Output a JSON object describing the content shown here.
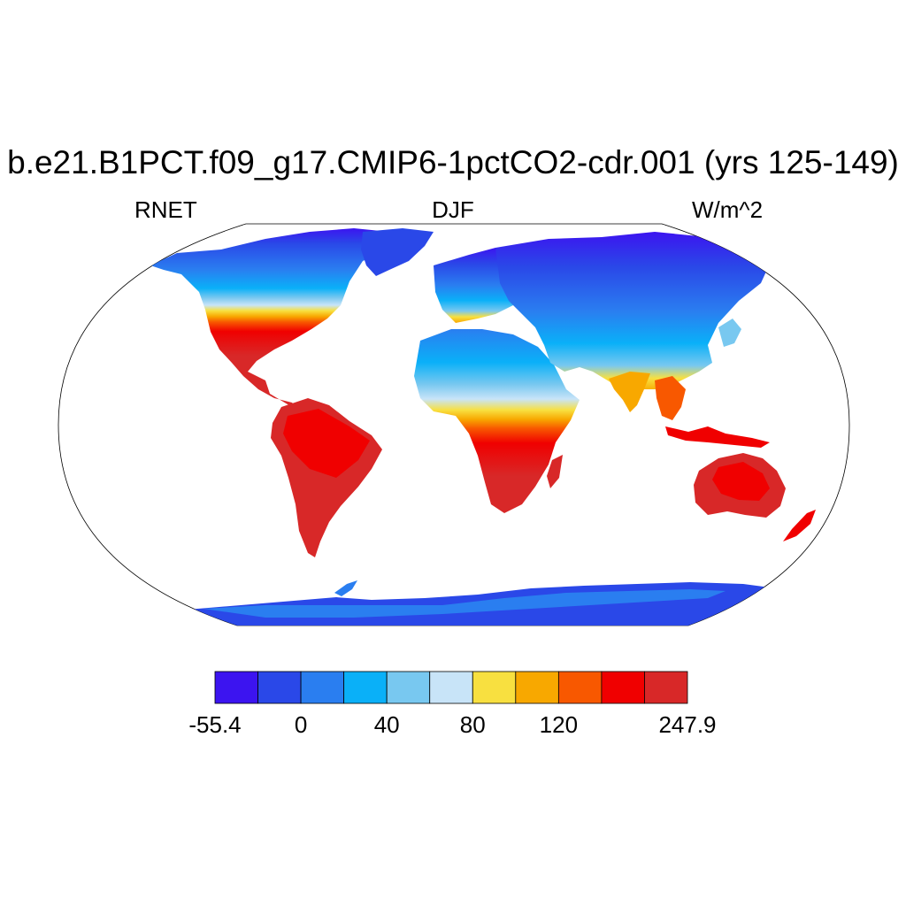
{
  "title": "b.e21.B1PCT.f09_g17.CMIP6-1pctCO2-cdr.001 (yrs 125-149)",
  "subtitle_left": "RNET",
  "subtitle_center": "DJF",
  "subtitle_right": "W/m^2",
  "colorbar": {
    "colors": [
      "#3c14f0",
      "#2a48e8",
      "#2a7ef0",
      "#0ab0f8",
      "#78c8f0",
      "#c8e4f8",
      "#f8e040",
      "#f8a800",
      "#f85800",
      "#f00000",
      "#d82828"
    ],
    "labels": [
      {
        "text": "-55.4",
        "boundary": 0
      },
      {
        "text": "0",
        "boundary": 2
      },
      {
        "text": "40",
        "boundary": 4
      },
      {
        "text": "80",
        "boundary": 6
      },
      {
        "text": "120",
        "boundary": 8
      },
      {
        "text": "247.9",
        "boundary": 11
      }
    ]
  }
}
